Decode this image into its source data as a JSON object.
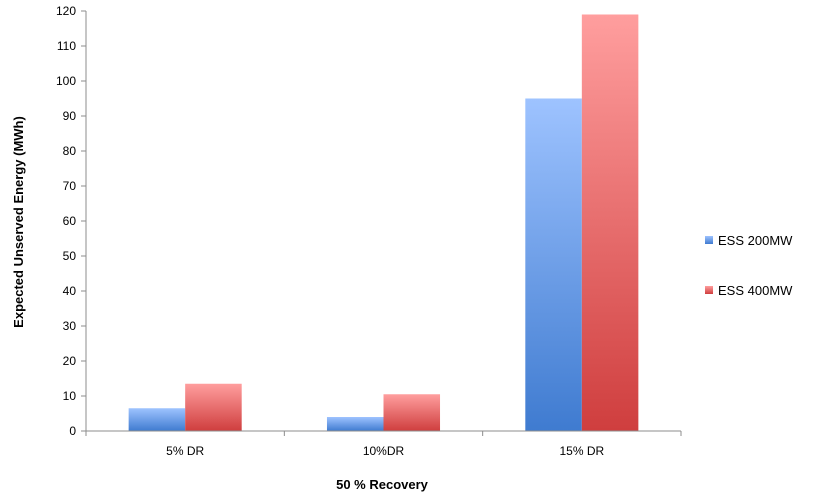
{
  "chart_data": {
    "type": "bar",
    "categories": [
      "5% DR",
      "10%DR",
      "15% DR"
    ],
    "series": [
      {
        "name": "ESS 200MW",
        "values": [
          6.5,
          4,
          95
        ],
        "color": "#4f86d6"
      },
      {
        "name": "ESS 400MW",
        "values": [
          13.5,
          10.5,
          119
        ],
        "color": "#d95050"
      }
    ],
    "xlabel": "50 % Recovery",
    "ylabel": "Expected Unserved Energy (MWh)",
    "ylim": [
      0,
      120
    ],
    "yticks": [
      0,
      10,
      20,
      30,
      40,
      50,
      60,
      70,
      80,
      90,
      100,
      110,
      120
    ],
    "grid": false,
    "legend_position": "right"
  }
}
